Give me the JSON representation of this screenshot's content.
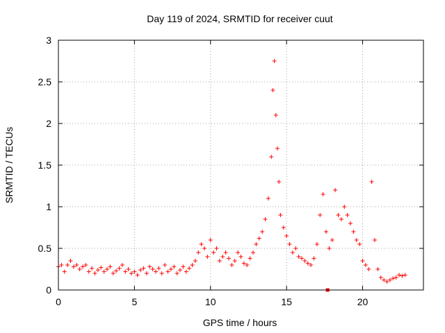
{
  "chart_data": {
    "type": "scatter",
    "title": "Day 119 of 2024, SRMTID for receiver cuut",
    "xlabel": "GPS time / hours",
    "ylabel": "SRMTID / TECUs",
    "xlim": [
      0,
      24
    ],
    "ylim": [
      0,
      3
    ],
    "x_ticks": [
      "0",
      "5",
      "10",
      "15",
      "20"
    ],
    "y_ticks": [
      "0",
      "0.5",
      "1",
      "1.5",
      "2",
      "2.5",
      "3"
    ],
    "x_tick_values": [
      0,
      5,
      10,
      15,
      20
    ],
    "y_tick_values": [
      0,
      0.5,
      1,
      1.5,
      2,
      2.5,
      3
    ],
    "grid": true,
    "marker": "plus",
    "series_color": "#ff0000",
    "grid_color": "#a0a0a0",
    "x": [
      0.0,
      0.2,
      0.4,
      0.6,
      0.8,
      1.0,
      1.2,
      1.4,
      1.6,
      1.8,
      2.0,
      2.2,
      2.4,
      2.6,
      2.8,
      3.0,
      3.2,
      3.4,
      3.6,
      3.8,
      4.0,
      4.2,
      4.4,
      4.6,
      4.8,
      5.0,
      5.2,
      5.4,
      5.6,
      5.8,
      6.0,
      6.2,
      6.4,
      6.6,
      6.8,
      7.0,
      7.2,
      7.4,
      7.6,
      7.8,
      8.0,
      8.2,
      8.4,
      8.6,
      8.8,
      9.0,
      9.2,
      9.4,
      9.6,
      9.8,
      10.0,
      10.2,
      10.4,
      10.6,
      10.8,
      11.0,
      11.2,
      11.4,
      11.6,
      11.8,
      12.0,
      12.2,
      12.4,
      12.6,
      12.8,
      13.0,
      13.2,
      13.4,
      13.6,
      13.8,
      14.0,
      14.1,
      14.2,
      14.3,
      14.4,
      14.5,
      14.6,
      14.8,
      15.0,
      15.2,
      15.4,
      15.6,
      15.8,
      16.0,
      16.2,
      16.4,
      16.6,
      16.8,
      17.0,
      17.2,
      17.4,
      17.6,
      17.8,
      18.0,
      18.2,
      18.4,
      18.6,
      18.8,
      19.0,
      19.2,
      19.4,
      19.6,
      19.8,
      20.0,
      20.2,
      20.4,
      20.6,
      20.8,
      21.0,
      21.2,
      21.4,
      21.6,
      21.8,
      22.0,
      22.2,
      22.4,
      22.6,
      22.8
    ],
    "y": [
      0.28,
      0.3,
      0.22,
      0.3,
      0.35,
      0.28,
      0.3,
      0.25,
      0.28,
      0.3,
      0.22,
      0.26,
      0.2,
      0.24,
      0.27,
      0.22,
      0.25,
      0.28,
      0.2,
      0.23,
      0.26,
      0.3,
      0.22,
      0.25,
      0.2,
      0.22,
      0.18,
      0.24,
      0.26,
      0.2,
      0.28,
      0.25,
      0.22,
      0.26,
      0.2,
      0.3,
      0.22,
      0.25,
      0.28,
      0.2,
      0.24,
      0.28,
      0.22,
      0.26,
      0.3,
      0.35,
      0.45,
      0.55,
      0.5,
      0.4,
      0.6,
      0.45,
      0.5,
      0.35,
      0.4,
      0.45,
      0.38,
      0.3,
      0.35,
      0.45,
      0.4,
      0.32,
      0.3,
      0.38,
      0.45,
      0.55,
      0.62,
      0.7,
      0.85,
      1.1,
      1.6,
      2.4,
      2.75,
      2.1,
      1.7,
      1.3,
      0.9,
      0.75,
      0.65,
      0.55,
      0.45,
      0.5,
      0.4,
      0.38,
      0.35,
      0.32,
      0.3,
      0.38,
      0.55,
      0.9,
      1.15,
      0.7,
      0.5,
      0.6,
      1.2,
      0.9,
      0.85,
      1.0,
      0.9,
      0.8,
      0.7,
      0.6,
      0.55,
      0.35,
      0.3,
      0.25,
      1.3,
      0.6,
      0.25,
      0.15,
      0.12,
      0.1,
      0.12,
      0.14,
      0.15,
      0.18,
      0.17,
      0.18
    ],
    "outlier_marker": {
      "x": 17.7,
      "y": 0.0,
      "shape": "square"
    }
  }
}
